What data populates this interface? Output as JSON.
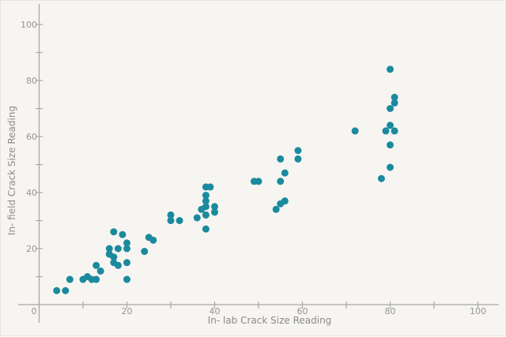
{
  "chart_style": {
    "background": "#f7f5f2",
    "axis_color": "#a8a8a8",
    "tick_label_color": "#949494",
    "axis_title_color": "#8a8a8a",
    "dot_color": "#1b8a9d",
    "dot_radius": 4.5,
    "grid": "off",
    "legend": "none"
  },
  "chart_data": {
    "type": "scatter",
    "title": "",
    "xlabel": "In- lab Crack Size Reading",
    "ylabel": "In- field Crack Size Reading",
    "xlim": [
      -5,
      105
    ],
    "ylim": [
      -6,
      107
    ],
    "x_major_ticks": [
      0,
      20,
      40,
      60,
      80,
      100
    ],
    "x_minor_ticks": [
      10,
      30,
      50,
      70,
      90
    ],
    "y_major_ticks": [
      20,
      40,
      60,
      80,
      100
    ],
    "y_minor_ticks": [
      10,
      30,
      50,
      70,
      90
    ],
    "points": [
      [
        4,
        5
      ],
      [
        6,
        5
      ],
      [
        7,
        9
      ],
      [
        10,
        9
      ],
      [
        11,
        10
      ],
      [
        12,
        9
      ],
      [
        13,
        9
      ],
      [
        13,
        14
      ],
      [
        14,
        12
      ],
      [
        20,
        9
      ],
      [
        16,
        20
      ],
      [
        18,
        20
      ],
      [
        20,
        22
      ],
      [
        20,
        20
      ],
      [
        16,
        18
      ],
      [
        17,
        17
      ],
      [
        17,
        15
      ],
      [
        20,
        15
      ],
      [
        18,
        14
      ],
      [
        17,
        26
      ],
      [
        19,
        25
      ],
      [
        24,
        19
      ],
      [
        25,
        24
      ],
      [
        26,
        23
      ],
      [
        30,
        32
      ],
      [
        30,
        30
      ],
      [
        32,
        30
      ],
      [
        36,
        31
      ],
      [
        37,
        34
      ],
      [
        38,
        27
      ],
      [
        38,
        32
      ],
      [
        38,
        35
      ],
      [
        38,
        37
      ],
      [
        38,
        39
      ],
      [
        38,
        42
      ],
      [
        39,
        42
      ],
      [
        40,
        35
      ],
      [
        40,
        33
      ],
      [
        49,
        44
      ],
      [
        50,
        44
      ],
      [
        54,
        34
      ],
      [
        55,
        36
      ],
      [
        56,
        37
      ],
      [
        55,
        44
      ],
      [
        56,
        47
      ],
      [
        55,
        52
      ],
      [
        59,
        52
      ],
      [
        59,
        55
      ],
      [
        72,
        62
      ],
      [
        78,
        45
      ],
      [
        80,
        49
      ],
      [
        80,
        57
      ],
      [
        79,
        62
      ],
      [
        81,
        62
      ],
      [
        80,
        64
      ],
      [
        80,
        70
      ],
      [
        81,
        72
      ],
      [
        81,
        74
      ],
      [
        80,
        84
      ]
    ]
  }
}
